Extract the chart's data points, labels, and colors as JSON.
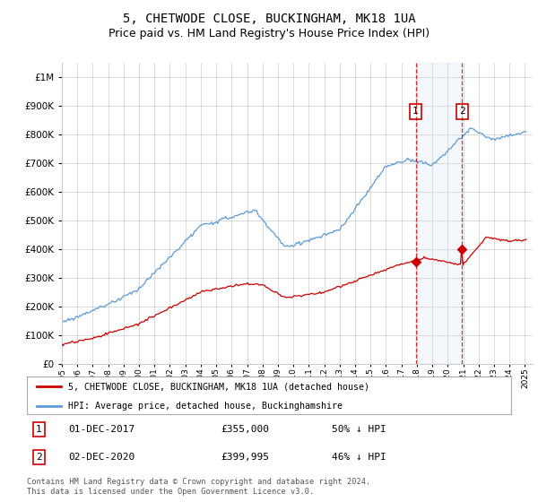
{
  "title": "5, CHETWODE CLOSE, BUCKINGHAM, MK18 1UA",
  "subtitle": "Price paid vs. HM Land Registry's House Price Index (HPI)",
  "title_fontsize": 10,
  "subtitle_fontsize": 9,
  "hpi_color": "#5b9bd5",
  "price_color": "#cc0000",
  "marker_color": "#cc0000",
  "sale1_year": 2017.92,
  "sale1_price": 355000,
  "sale2_year": 2020.92,
  "sale2_price": 399995,
  "legend_line1": "5, CHETWODE CLOSE, BUCKINGHAM, MK18 1UA (detached house)",
  "legend_line2": "HPI: Average price, detached house, Buckinghamshire",
  "footnote": "Contains HM Land Registry data © Crown copyright and database right 2024.\nThis data is licensed under the Open Government Licence v3.0.",
  "ylim": [
    0,
    1050000
  ],
  "xlim_start": 1995,
  "xlim_end": 2025.5,
  "background_color": "#ffffff",
  "grid_color": "#cccccc"
}
